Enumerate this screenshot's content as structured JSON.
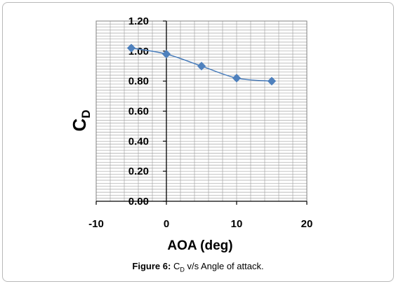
{
  "figure_caption": {
    "label": "Figure 6:",
    "text_c": "C",
    "text_sub": "D",
    "text_rest": " v/s Angle of attack."
  },
  "chart_data": {
    "type": "line",
    "xlabel": "AOA (deg)",
    "ylabel": "C",
    "ylabel_sub": "D",
    "xlim": [
      -10,
      20
    ],
    "ylim": [
      0,
      1.2
    ],
    "x_ticks": [
      -10,
      0,
      10,
      20
    ],
    "x_tick_labels": [
      "-10",
      "0",
      "10",
      "20"
    ],
    "y_ticks": [
      0,
      0.2,
      0.4,
      0.6,
      0.8,
      1.0,
      1.2
    ],
    "y_tick_labels": [
      "0.00",
      "0.20",
      "0.40",
      "0.60",
      "0.80",
      "1.00",
      "1.20"
    ],
    "grid": true,
    "series": [
      {
        "x": [
          -5,
          0,
          5,
          10,
          15
        ],
        "y": [
          1.02,
          0.98,
          0.9,
          0.82,
          0.8
        ],
        "color": "#4f81bd",
        "marker": "diamond"
      }
    ]
  }
}
